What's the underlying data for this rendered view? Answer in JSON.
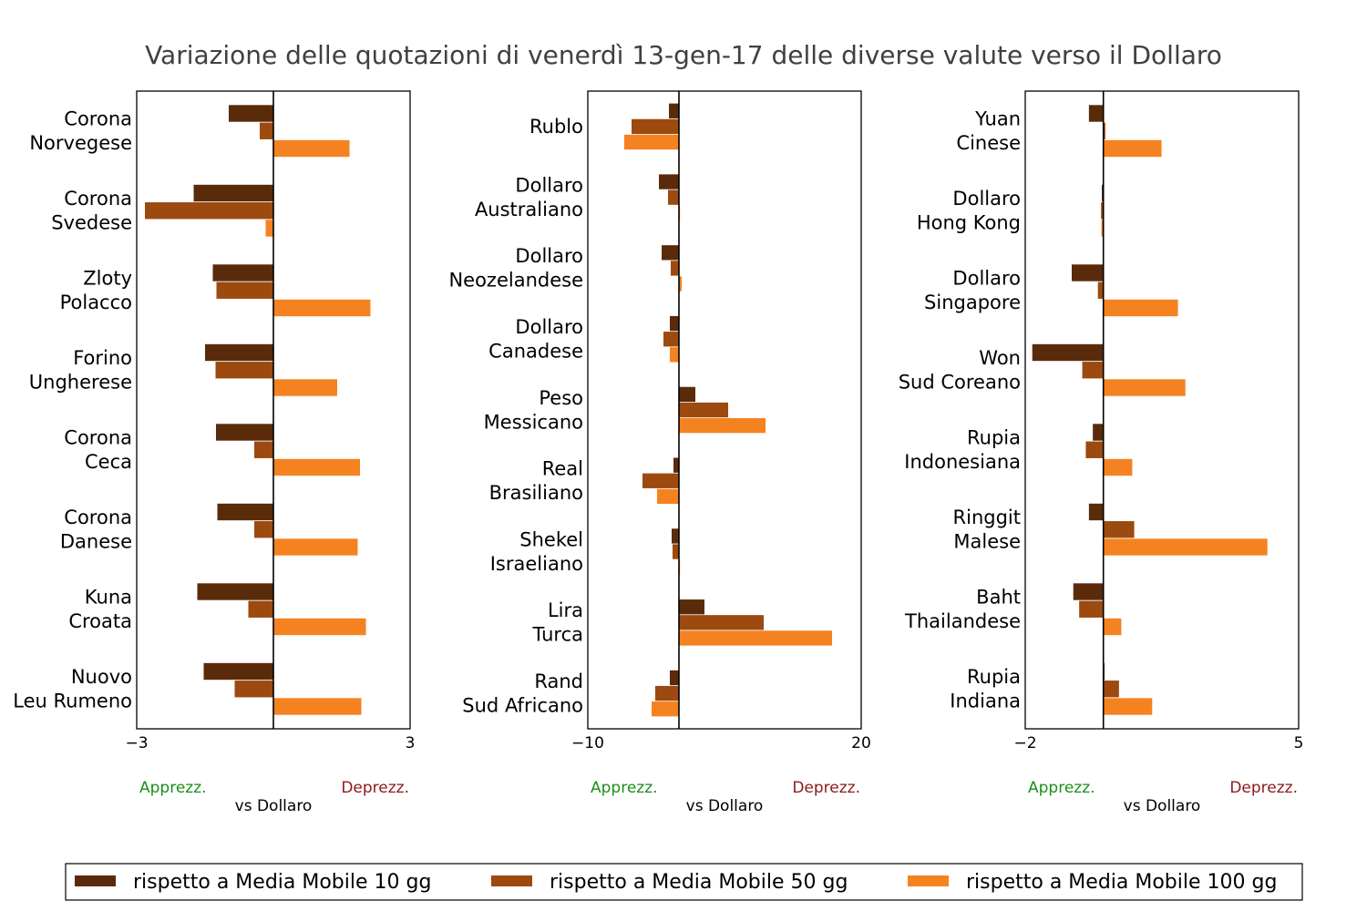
{
  "title": "Variazione delle quotazioni di venerdì 13-gen-17 delle diverse valute verso il Dollaro",
  "colors": {
    "ma10": "#5a2b0a",
    "ma50": "#9c4a10",
    "ma100": "#f58220"
  },
  "legend": {
    "placement": "bottom-center",
    "items": [
      {
        "key": "ma10",
        "label": "rispetto a Media Mobile 10 gg"
      },
      {
        "key": "ma50",
        "label": "rispetto a Media Mobile 50 gg"
      },
      {
        "key": "ma100",
        "label": "rispetto a Media Mobile 100 gg"
      }
    ]
  },
  "chart_data": [
    {
      "type": "bar",
      "orientation": "horizontal",
      "xlim": [
        -3,
        3
      ],
      "xticks": [
        "−3",
        "3"
      ],
      "label_left": "Apprezz.",
      "label_right": "Deprezz.",
      "xlabel": "vs Dollaro",
      "categories": [
        [
          "Corona",
          "Norvegese"
        ],
        [
          "Corona",
          "Svedese"
        ],
        [
          "Zloty",
          "Polacco"
        ],
        [
          "Forino",
          "Ungherese"
        ],
        [
          "Corona",
          "Ceca"
        ],
        [
          "Corona",
          "Danese"
        ],
        [
          "Kuna",
          "Croata"
        ],
        [
          "Nuovo",
          "Leu Rumeno"
        ]
      ],
      "series": [
        {
          "key": "ma10",
          "values": [
            -0.98,
            -1.75,
            -1.33,
            -1.5,
            -1.26,
            -1.23,
            -1.67,
            -1.53
          ]
        },
        {
          "key": "ma50",
          "values": [
            -0.3,
            -2.82,
            -1.25,
            -1.27,
            -0.42,
            -0.42,
            -0.55,
            -0.85
          ]
        },
        {
          "key": "ma100",
          "values": [
            1.67,
            -0.17,
            2.13,
            1.4,
            1.9,
            1.85,
            2.03,
            1.93
          ]
        }
      ]
    },
    {
      "type": "bar",
      "orientation": "horizontal",
      "xlim": [
        -10,
        20
      ],
      "xticks": [
        "−10",
        "20"
      ],
      "label_left": "Apprezz.",
      "label_right": "Deprezz.",
      "xlabel": "vs Dollaro",
      "categories": [
        [
          "Rublo"
        ],
        [
          "Dollaro",
          "Australiano"
        ],
        [
          "Dollaro",
          "Neozelandese"
        ],
        [
          "Dollaro",
          "Canadese"
        ],
        [
          "Peso",
          "Messicano"
        ],
        [
          "Real",
          "Brasiliano"
        ],
        [
          "Shekel",
          "Israeliano"
        ],
        [
          "Lira",
          "Turca"
        ],
        [
          "Rand",
          "Sud Africano"
        ]
      ],
      "series": [
        {
          "key": "ma10",
          "values": [
            -1.1,
            -2.2,
            -1.9,
            -1.0,
            1.8,
            -0.6,
            -0.8,
            2.8,
            -1.0
          ]
        },
        {
          "key": "ma50",
          "values": [
            -5.2,
            -1.2,
            -0.9,
            -1.7,
            5.4,
            -4.0,
            -0.7,
            9.3,
            -2.6
          ]
        },
        {
          "key": "ma100",
          "values": [
            -6.0,
            0.1,
            0.3,
            -1.0,
            9.5,
            -2.4,
            0.0,
            16.8,
            -3.0
          ]
        }
      ]
    },
    {
      "type": "bar",
      "orientation": "horizontal",
      "xlim": [
        -2,
        5
      ],
      "xticks": [
        "−2",
        "5"
      ],
      "label_left": "Apprezz.",
      "label_right": "Deprezz.",
      "xlabel": "vs Dollaro",
      "categories": [
        [
          "Yuan",
          "Cinese"
        ],
        [
          "Dollaro",
          "Hong Kong"
        ],
        [
          "Dollaro",
          "Singapore"
        ],
        [
          "Won",
          "Sud Coreano"
        ],
        [
          "Rupia",
          "Indonesiana"
        ],
        [
          "Ringgit",
          "Malese"
        ],
        [
          "Baht",
          "Thailandese"
        ],
        [
          "Rupia",
          "Indiana"
        ]
      ],
      "series": [
        {
          "key": "ma10",
          "values": [
            -0.37,
            -0.04,
            -0.81,
            -1.82,
            -0.27,
            -0.37,
            -0.77,
            0.03
          ]
        },
        {
          "key": "ma50",
          "values": [
            0.05,
            -0.06,
            -0.14,
            -0.54,
            -0.45,
            0.79,
            -0.62,
            0.4
          ]
        },
        {
          "key": "ma100",
          "values": [
            1.49,
            -0.05,
            1.91,
            2.1,
            0.74,
            4.2,
            0.46,
            1.25
          ]
        }
      ]
    }
  ]
}
